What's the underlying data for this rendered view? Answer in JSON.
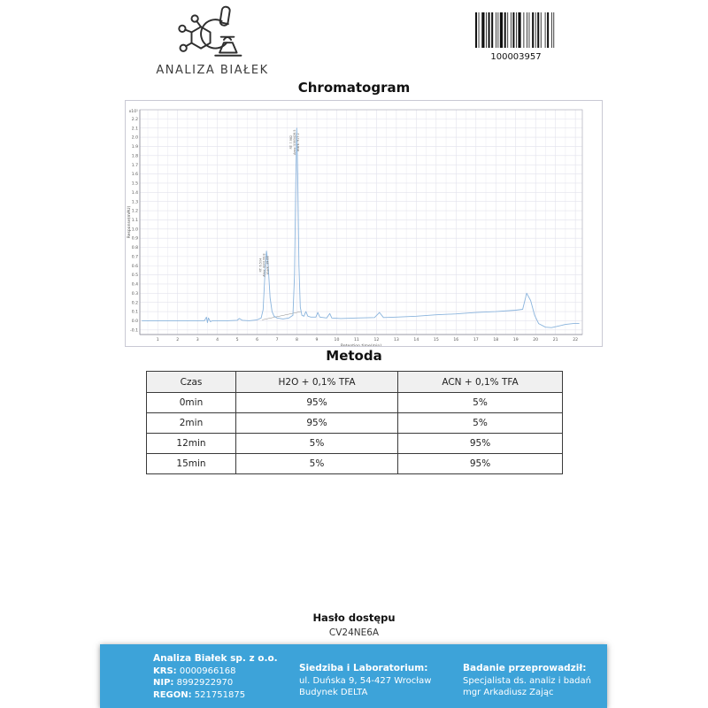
{
  "header": {
    "logo_text": "ANALIZA BIAŁEK",
    "barcode_value": "100003957"
  },
  "chart_data": {
    "type": "line",
    "title": "Chromatogram",
    "xlabel": "Retention time(min)",
    "ylabel": "Response(mAU)",
    "y_multiplier_label": "x10¹",
    "xlim": [
      0.1,
      22.35
    ],
    "ylim": [
      -0.15,
      2.3
    ],
    "grid": true,
    "legend": "none",
    "x_ticks": [
      1,
      2,
      3,
      4,
      5,
      6,
      7,
      8,
      9,
      10,
      11,
      12,
      13,
      14,
      15,
      16,
      17,
      18,
      19,
      20,
      21,
      22
    ],
    "y_ticks": [
      "2.2",
      "2.1",
      "2.0",
      "1.9",
      "1.8",
      "1.7",
      "1.6",
      "1.5",
      "1.4",
      "1.3",
      "1.2",
      "1.1",
      "1.0",
      "0.9",
      "0.8",
      "0.7",
      "0.6",
      "0.5",
      "0.4",
      "0.3",
      "0.2",
      "0.1",
      "0.0",
      "-0.1"
    ],
    "colors": {
      "trace": "#8ab4dd",
      "grid_major": "#e2e2ec",
      "grid_minor": "#ededf4",
      "axis": "#9a9aa5",
      "integration": "#8a8a8a"
    },
    "trace": [
      [
        0.2,
        0.0
      ],
      [
        1.0,
        0.0
      ],
      [
        2.0,
        0.0
      ],
      [
        3.0,
        0.0
      ],
      [
        3.35,
        0.0
      ],
      [
        3.45,
        0.04
      ],
      [
        3.5,
        -0.02
      ],
      [
        3.55,
        0.03
      ],
      [
        3.65,
        -0.01
      ],
      [
        3.75,
        0.0
      ],
      [
        4.5,
        0.0
      ],
      [
        5.0,
        0.005
      ],
      [
        5.1,
        0.025
      ],
      [
        5.25,
        0.005
      ],
      [
        5.6,
        0.0
      ],
      [
        6.0,
        0.01
      ],
      [
        6.2,
        0.03
      ],
      [
        6.3,
        0.12
      ],
      [
        6.4,
        0.55
      ],
      [
        6.47,
        0.76
      ],
      [
        6.55,
        0.62
      ],
      [
        6.65,
        0.25
      ],
      [
        6.75,
        0.1
      ],
      [
        6.85,
        0.05
      ],
      [
        7.0,
        0.03
      ],
      [
        7.3,
        0.02
      ],
      [
        7.6,
        0.03
      ],
      [
        7.8,
        0.06
      ],
      [
        7.88,
        0.5
      ],
      [
        7.94,
        1.5
      ],
      [
        7.99,
        2.1
      ],
      [
        8.04,
        1.6
      ],
      [
        8.1,
        0.6
      ],
      [
        8.17,
        0.15
      ],
      [
        8.25,
        0.06
      ],
      [
        8.35,
        0.05
      ],
      [
        8.45,
        0.1
      ],
      [
        8.55,
        0.05
      ],
      [
        8.7,
        0.04
      ],
      [
        8.95,
        0.04
      ],
      [
        9.05,
        0.09
      ],
      [
        9.15,
        0.04
      ],
      [
        9.5,
        0.03
      ],
      [
        9.65,
        0.08
      ],
      [
        9.75,
        0.03
      ],
      [
        10.2,
        0.025
      ],
      [
        11.0,
        0.03
      ],
      [
        11.9,
        0.035
      ],
      [
        12.15,
        0.09
      ],
      [
        12.35,
        0.035
      ],
      [
        13.0,
        0.04
      ],
      [
        14.0,
        0.05
      ],
      [
        15.0,
        0.065
      ],
      [
        16.0,
        0.075
      ],
      [
        17.0,
        0.09
      ],
      [
        18.0,
        0.1
      ],
      [
        19.0,
        0.115
      ],
      [
        19.35,
        0.125
      ],
      [
        19.55,
        0.3
      ],
      [
        19.75,
        0.22
      ],
      [
        19.95,
        0.06
      ],
      [
        20.15,
        -0.03
      ],
      [
        20.5,
        -0.07
      ],
      [
        20.8,
        -0.075
      ],
      [
        21.1,
        -0.06
      ],
      [
        21.5,
        -0.04
      ],
      [
        21.9,
        -0.03
      ],
      [
        22.2,
        -0.03
      ]
    ],
    "integration_baseline": {
      "x1": 6.25,
      "y1": 0.01,
      "x2": 8.2,
      "y2": 0.1
    },
    "peaks": [
      {
        "x": 6.47,
        "apex": 0.78,
        "lines": [
          "RT: 6.504",
          "Area: 830199.8",
          "mark: 39.88"
        ]
      },
      {
        "x": 7.99,
        "apex": 2.12,
        "lines": [
          "RT: 7.982",
          "Area: 5383428.5",
          "mark: 917.2"
        ]
      }
    ]
  },
  "metoda": {
    "title": "Metoda",
    "table": {
      "headers": [
        "Czas",
        "H2O + 0,1% TFA",
        "ACN + 0,1% TFA"
      ],
      "rows": [
        [
          "0min",
          "95%",
          "5%"
        ],
        [
          "2min",
          "95%",
          "5%"
        ],
        [
          "12min",
          "5%",
          "95%"
        ],
        [
          "15min",
          "5%",
          "95%"
        ]
      ]
    }
  },
  "password": {
    "label": "Hasło dostępu",
    "value": "CV24NE6A"
  },
  "footer": {
    "accent_color": "#3da3d9",
    "company": {
      "name": "Analiza Białek sp. z o.o.",
      "krs_label": "KRS:",
      "krs": "0000966168",
      "nip_label": "NIP:",
      "nip": "8992922970",
      "regon_label": "REGON:",
      "regon": "521751875"
    },
    "location": {
      "title": "Siedziba i Laboratorium:",
      "line1": "ul. Duńska 9, 54-427 Wrocław",
      "line2": "Budynek DELTA"
    },
    "examiner": {
      "title": "Badanie przeprowadził:",
      "line1": "Specjalista ds. analiz i badań",
      "line2": "mgr Arkadiusz Zając"
    }
  }
}
